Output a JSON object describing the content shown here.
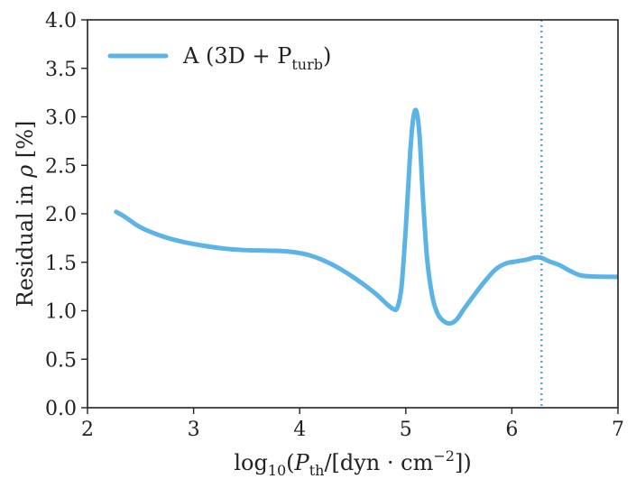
{
  "chart_data": {
    "type": "line",
    "xlabel": {
      "prefix": "log",
      "sub": "10",
      "open": "(",
      "var": "P",
      "var_sub": "th",
      "mid": "/[dyn · cm",
      "sup": "−2",
      "close": "])"
    },
    "ylabel": {
      "text": "Residual in ",
      "var": "ρ",
      "unit": " [%]"
    },
    "xlim": [
      2,
      7
    ],
    "ylim": [
      0.0,
      4.0
    ],
    "xticks": [
      2,
      3,
      4,
      5,
      6,
      7
    ],
    "xtick_labels": [
      "2",
      "3",
      "4",
      "5",
      "6",
      "7"
    ],
    "yticks": [
      0.0,
      0.5,
      1.0,
      1.5,
      2.0,
      2.5,
      3.0,
      3.5,
      4.0
    ],
    "ytick_labels": [
      "0.0",
      "0.5",
      "1.0",
      "1.5",
      "2.0",
      "2.5",
      "3.0",
      "3.5",
      "4.0"
    ],
    "grid": false,
    "legend_position": "top-left",
    "vline": {
      "x": 6.28,
      "style": "dotted",
      "color": "#4ea6dc"
    },
    "series": [
      {
        "name": {
          "label": "A",
          "paren": " (3D + P",
          "sub": "turb",
          "close": ")"
        },
        "color": "#5bb4e5",
        "x": [
          2.27,
          2.35,
          2.5,
          2.7,
          2.9,
          3.1,
          3.3,
          3.5,
          3.7,
          3.9,
          4.1,
          4.3,
          4.5,
          4.7,
          4.82,
          4.88,
          4.92,
          4.96,
          5.0,
          5.04,
          5.07,
          5.1,
          5.13,
          5.16,
          5.2,
          5.25,
          5.3,
          5.36,
          5.42,
          5.48,
          5.55,
          5.65,
          5.75,
          5.85,
          5.95,
          6.05,
          6.15,
          6.22,
          6.28,
          6.35,
          6.45,
          6.55,
          6.65,
          6.8,
          7.0
        ],
        "y": [
          2.02,
          1.97,
          1.86,
          1.77,
          1.71,
          1.67,
          1.64,
          1.625,
          1.62,
          1.61,
          1.57,
          1.48,
          1.35,
          1.19,
          1.07,
          1.02,
          1.03,
          1.25,
          1.85,
          2.6,
          2.98,
          3.06,
          2.8,
          2.2,
          1.55,
          1.15,
          0.97,
          0.89,
          0.87,
          0.91,
          1.02,
          1.17,
          1.31,
          1.43,
          1.49,
          1.51,
          1.53,
          1.55,
          1.545,
          1.51,
          1.47,
          1.41,
          1.365,
          1.352,
          1.35
        ]
      }
    ]
  }
}
